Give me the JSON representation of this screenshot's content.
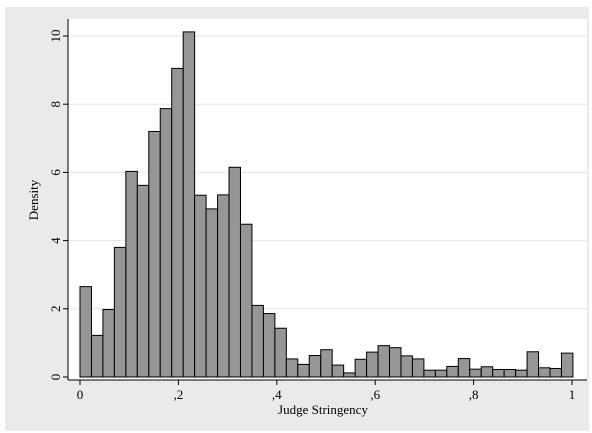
{
  "chart_data": {
    "type": "bar",
    "subtype": "histogram",
    "xlabel": "Judge Stringency",
    "ylabel": "Density",
    "xlim": [
      0,
      1
    ],
    "ylim": [
      0,
      10.5
    ],
    "x_ticks": [
      0,
      0.2,
      0.4,
      0.6,
      0.8,
      1
    ],
    "x_tick_labels": [
      "0",
      ",2",
      ",4",
      ",6",
      ",8",
      "1"
    ],
    "y_ticks": [
      0,
      2,
      4,
      6,
      8,
      10
    ],
    "y_tick_labels": [
      "0",
      "2",
      "4",
      "6",
      "8",
      "10"
    ],
    "grid": true,
    "bar_color": "#969696",
    "bar_edge_color": "#000000",
    "bin_width": 0.0233,
    "bins_start": [
      0,
      0.0233,
      0.0466,
      0.0699,
      0.0932,
      0.1165,
      0.1398,
      0.1631,
      0.1864,
      0.2097,
      0.233,
      0.2563,
      0.2796,
      0.3029,
      0.3262,
      0.3495,
      0.3728,
      0.3961,
      0.4194,
      0.4427,
      0.466,
      0.4893,
      0.5126,
      0.5359,
      0.5592,
      0.5825,
      0.6058,
      0.6291,
      0.6524,
      0.6757,
      0.699,
      0.7223,
      0.7456,
      0.7689,
      0.7922,
      0.8155,
      0.8388,
      0.8621,
      0.8854,
      0.9087,
      0.932,
      0.9553,
      0.9786
    ],
    "values": [
      2.65,
      1.22,
      1.98,
      3.8,
      6.03,
      5.62,
      7.2,
      7.87,
      9.05,
      10.12,
      5.33,
      4.93,
      5.34,
      6.15,
      4.48,
      2.1,
      1.86,
      1.43,
      0.53,
      0.37,
      0.63,
      0.8,
      0.35,
      0.12,
      0.52,
      0.73,
      0.92,
      0.86,
      0.62,
      0.53,
      0.2,
      0.2,
      0.31,
      0.54,
      0.23,
      0.3,
      0.22,
      0.22,
      0.2,
      0.74,
      0.27,
      0.25,
      0.7
    ]
  }
}
